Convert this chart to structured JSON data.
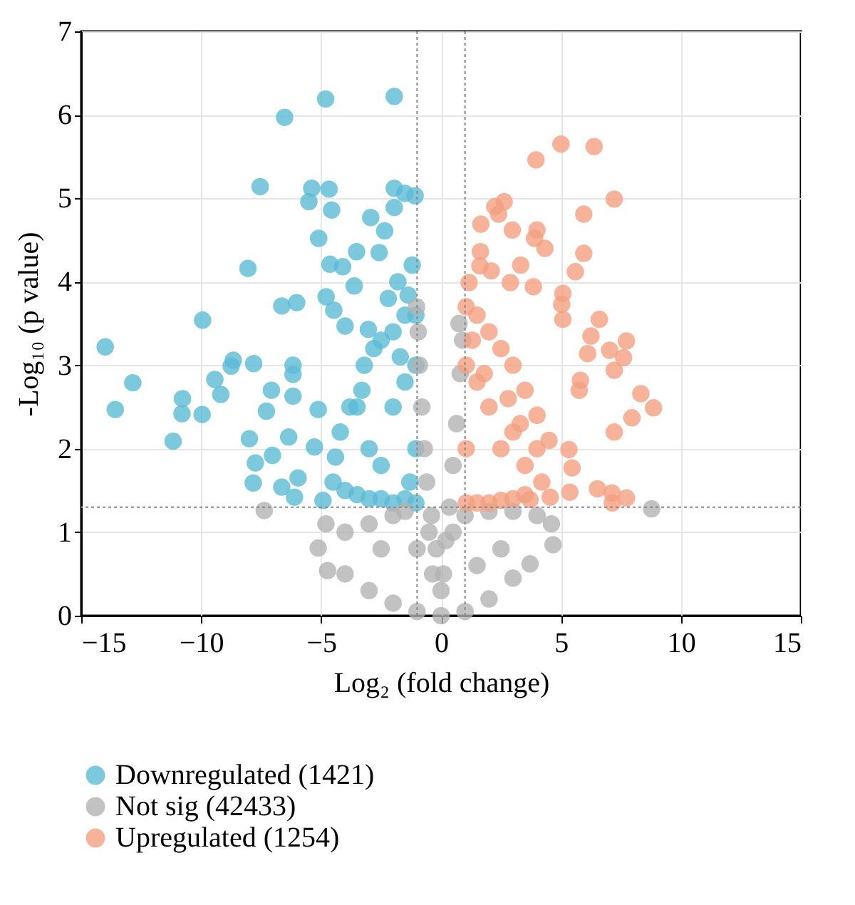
{
  "chart_data": {
    "type": "scatter",
    "xlabel": "Log₂ (fold change)",
    "ylabel": "-Log₁₀ (p value)",
    "xlim": [
      -15,
      15
    ],
    "xticks": [
      -15,
      -10,
      -5,
      0,
      5,
      10,
      15
    ],
    "ylim": [
      0,
      7
    ],
    "yticks": [
      0,
      1,
      2,
      3,
      4,
      5,
      6,
      7
    ],
    "grid": true,
    "legend": "bottom",
    "marker": "circle",
    "series": [
      {
        "name": "Downregulated (1421)",
        "color": "#5bbcd6",
        "x": [
          -14.0,
          -13.58,
          -12.85,
          -11.17,
          -10.78,
          -10.8,
          -9.94,
          -9.96,
          -9.43,
          -9.18,
          -8.66,
          -8.75,
          -8.05,
          -7.99,
          -7.81,
          -7.74,
          -7.83,
          -7.54,
          -7.07,
          -7.28,
          -7.03,
          -6.64,
          -6.52,
          -6.64,
          -6.35,
          -6.17,
          -6.17,
          -6.17,
          -6.11,
          -6.02,
          -5.96,
          -5.51,
          -5.39,
          -5.28,
          -5.12,
          -5.1,
          -4.81,
          -4.67,
          -4.56,
          -4.63,
          -4.79,
          -4.47,
          -4.92,
          -4.1,
          -3.62,
          -3.52,
          -2.93,
          -4.0,
          -3.03,
          -1.95,
          -1.95,
          -1.95,
          -1.08,
          -1.51,
          -2.35,
          -2.58,
          -1.37,
          -1.05,
          -1.05,
          -1.05,
          -1.05,
          -1.5,
          -2.0,
          -2.5,
          -3.0,
          -3.5,
          -4.0,
          -4.5,
          -3.8,
          -3.2,
          -2.5,
          -2.0,
          -1.5,
          -4.2,
          -3.0,
          -2.0,
          -1.5,
          -2.5,
          -3.5,
          -1.2,
          -1.8,
          -2.2,
          -2.8,
          -3.3,
          -4.4,
          -1.3,
          -1.7
        ],
        "values": [
          3.22,
          2.47,
          2.79,
          2.09,
          2.6,
          2.42,
          3.54,
          2.41,
          2.83,
          2.65,
          3.06,
          2.99,
          4.16,
          2.12,
          3.02,
          1.83,
          1.59,
          5.14,
          2.7,
          2.45,
          1.92,
          3.71,
          5.97,
          1.54,
          2.14,
          3.0,
          2.89,
          2.63,
          1.42,
          3.75,
          1.65,
          4.96,
          5.12,
          2.02,
          2.47,
          4.52,
          6.19,
          5.11,
          4.86,
          4.21,
          3.82,
          3.66,
          1.38,
          4.18,
          3.95,
          4.36,
          4.77,
          3.47,
          3.43,
          6.22,
          5.12,
          4.89,
          5.03,
          5.06,
          4.61,
          4.35,
          3.84,
          1.35,
          2.0,
          3.0,
          3.6,
          1.4,
          1.35,
          1.4,
          1.4,
          1.45,
          1.5,
          1.6,
          2.5,
          3.0,
          3.3,
          3.4,
          3.6,
          2.2,
          2.0,
          2.5,
          2.8,
          1.8,
          2.5,
          4.2,
          4.0,
          3.8,
          3.2,
          2.7,
          1.9,
          1.6,
          3.1
        ]
      },
      {
        "name": "Not sig (42433)",
        "color": "#b3b3b3",
        "x": [
          -1.02,
          -0.95,
          -0.9,
          -0.8,
          -0.7,
          -0.6,
          -0.4,
          -0.2,
          -0.35,
          0.0,
          0.1,
          0.2,
          0.35,
          0.5,
          0.65,
          0.8,
          0.9,
          0.75,
          0.5,
          -0.5,
          1.0,
          -1.5,
          -2.0,
          -3.0,
          -4.0,
          -4.8,
          -5.12,
          -4.73,
          -4.0,
          -3.0,
          -2.0,
          -1.0,
          1.0,
          2.0,
          3.0,
          3.71,
          4.67,
          4.6,
          4.0,
          3.0,
          2.0,
          -7.37,
          8.78,
          -2.5,
          2.5,
          -1.0,
          1.5,
          0.0
        ],
        "values": [
          3.7,
          3.4,
          3.0,
          2.5,
          2.0,
          1.6,
          1.2,
          0.8,
          0.5,
          0.0,
          0.5,
          0.9,
          1.3,
          1.8,
          2.3,
          2.9,
          3.3,
          3.5,
          1.0,
          1.0,
          1.2,
          1.25,
          1.2,
          1.1,
          1.0,
          1.1,
          0.81,
          0.54,
          0.5,
          0.3,
          0.15,
          0.05,
          0.05,
          0.2,
          0.45,
          0.62,
          0.85,
          1.1,
          1.2,
          1.25,
          1.25,
          1.26,
          1.28,
          0.8,
          0.8,
          0.8,
          0.6,
          0.3
        ]
      },
      {
        "name": "Upregulated (1254)",
        "color": "#f4a081",
        "x": [
          5.0,
          6.38,
          3.96,
          7.22,
          5.95,
          2.63,
          2.24,
          2.4,
          1.66,
          2.97,
          4.0,
          3.9,
          4.33,
          5.95,
          1.64,
          3.32,
          2.09,
          5.6,
          1.62,
          1.17,
          2.89,
          3.85,
          5.08,
          5.03,
          6.6,
          6.25,
          7.73,
          7.03,
          7.61,
          7.22,
          6.11,
          8.33,
          8.86,
          7.96,
          7.22,
          6.52,
          7.13,
          7.73,
          7.14,
          5.37,
          5.46,
          5.33,
          5.81,
          5.76,
          5.08,
          4.55,
          3.71,
          1.05,
          1.05,
          1.05,
          1.05,
          1.5,
          2.0,
          2.5,
          3.0,
          3.5,
          1.5,
          2.0,
          2.5,
          3.0,
          3.5,
          4.0,
          4.0,
          3.5,
          2.0,
          3.0,
          1.5,
          2.5,
          4.2,
          1.3,
          1.8,
          2.8,
          3.3,
          4.5
        ],
        "values": [
          5.65,
          5.62,
          5.46,
          4.99,
          4.81,
          4.96,
          4.9,
          4.81,
          4.69,
          4.62,
          4.62,
          4.52,
          4.4,
          4.34,
          4.36,
          4.2,
          4.13,
          4.12,
          4.19,
          3.99,
          3.99,
          3.94,
          3.86,
          3.73,
          3.55,
          3.35,
          3.29,
          3.18,
          3.09,
          2.94,
          3.14,
          2.66,
          2.49,
          2.37,
          2.2,
          1.52,
          1.47,
          1.41,
          1.35,
          1.48,
          1.77,
          1.99,
          2.82,
          2.7,
          3.55,
          1.42,
          1.39,
          1.35,
          2.0,
          3.0,
          3.7,
          1.35,
          1.35,
          1.38,
          1.4,
          1.45,
          3.6,
          3.4,
          3.2,
          3.0,
          2.7,
          2.4,
          2.0,
          1.8,
          2.5,
          2.2,
          2.8,
          2.0,
          1.6,
          3.3,
          2.9,
          2.6,
          2.3,
          2.1
        ]
      }
    ],
    "ref_lines": [
      {
        "axis": "x",
        "value": -1,
        "color": "#888888",
        "line_style": "dotted"
      },
      {
        "axis": "x",
        "value": 1,
        "color": "#888888",
        "line_style": "dotted"
      },
      {
        "axis": "y",
        "value": 1.3,
        "color": "#888888",
        "line_style": "dotted"
      }
    ]
  }
}
